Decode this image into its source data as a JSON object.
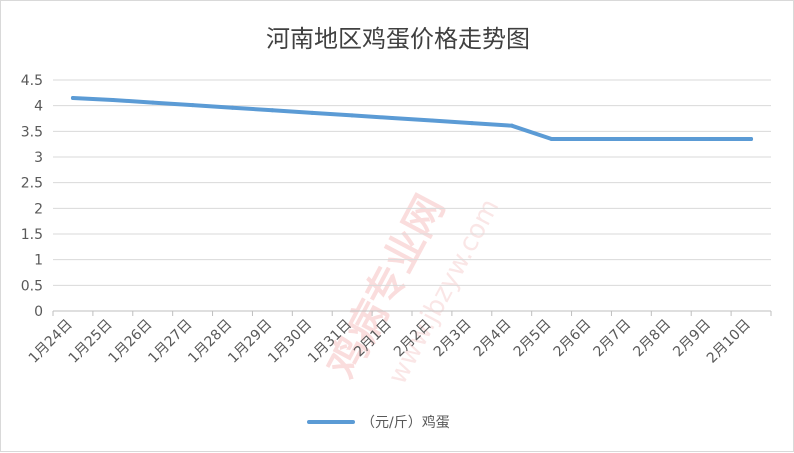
{
  "chart_data": {
    "type": "line",
    "title": "河南地区鸡蛋价格走势图",
    "categories": [
      "1月24日",
      "1月25日",
      "1月26日",
      "1月27日",
      "1月28日",
      "1月29日",
      "1月30日",
      "1月31日",
      "2月1日",
      "2月2日",
      "2月3日",
      "2月4日",
      "2月5日",
      "2月6日",
      "2月7日",
      "2月8日",
      "2月9日",
      "2月10日"
    ],
    "series": [
      {
        "name": "（元/斤）鸡蛋",
        "color": "#5b9bd5",
        "values": [
          4.15,
          4.11,
          4.06,
          4.01,
          3.96,
          3.91,
          3.86,
          3.81,
          3.76,
          3.71,
          3.66,
          3.61,
          3.35,
          3.35,
          3.35,
          3.35,
          3.35,
          3.35
        ]
      }
    ],
    "xlabel": "",
    "ylabel": "",
    "ylim": [
      0,
      4.5
    ],
    "yticks": [
      0,
      0.5,
      1,
      1.5,
      2,
      2.5,
      3,
      3.5,
      4,
      4.5
    ],
    "ytick_labels": [
      "0",
      "0.5",
      "1",
      "1.5",
      "2",
      "2.5",
      "3",
      "3.5",
      "4",
      "4.5"
    ],
    "grid": true,
    "legend_position": "bottom"
  },
  "watermark": {
    "main": "鸡病专业网",
    "url": "www.jbzyw.com",
    "color": "#e06060"
  }
}
